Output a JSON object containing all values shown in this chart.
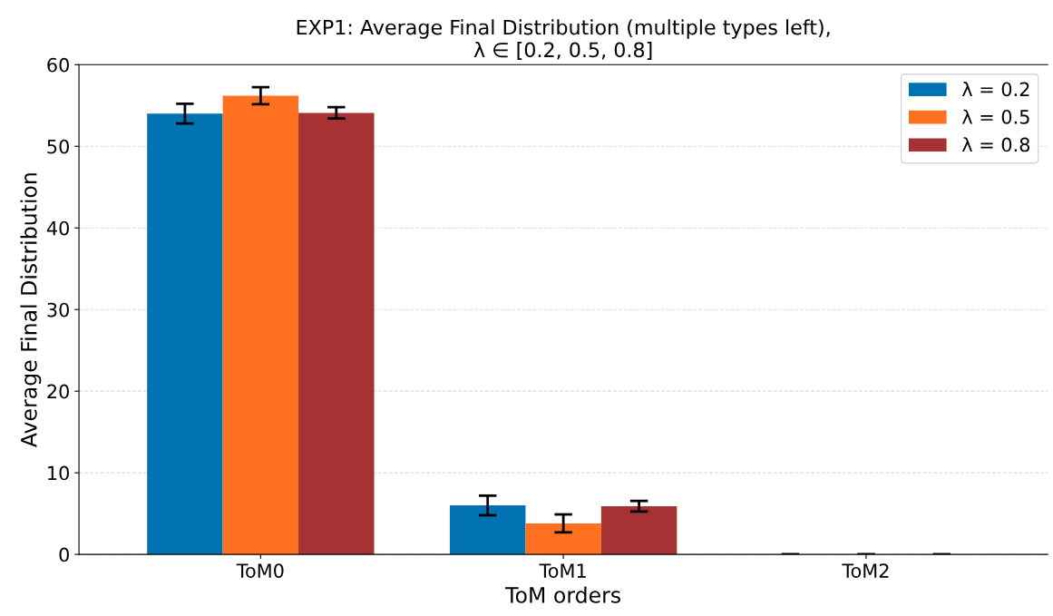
{
  "chart_data": {
    "type": "bar",
    "title": "EXP1: Average Final Distribution (multiple types left),\nλ ∈ [0.2, 0.5, 0.8]",
    "xlabel": "ToM orders",
    "ylabel": "Average Final Distribution",
    "categories": [
      "ToM0",
      "ToM1",
      "ToM2"
    ],
    "series": [
      {
        "name": "λ = 0.2",
        "color": "#0173b2",
        "values": [
          54.0,
          6.0,
          0
        ],
        "errors": [
          1.2,
          1.2,
          0
        ]
      },
      {
        "name": "λ = 0.5",
        "color": "#ff7020",
        "values": [
          56.2,
          3.8,
          0
        ],
        "errors": [
          1.05,
          1.1,
          0
        ]
      },
      {
        "name": "λ = 0.8",
        "color": "#a63233",
        "values": [
          54.1,
          5.9,
          0
        ],
        "errors": [
          0.7,
          0.65,
          0
        ]
      }
    ],
    "ylim": [
      0,
      60
    ],
    "yticks": [
      0,
      10,
      20,
      30,
      40,
      50,
      60
    ],
    "grid": "y",
    "legend": "top right"
  }
}
